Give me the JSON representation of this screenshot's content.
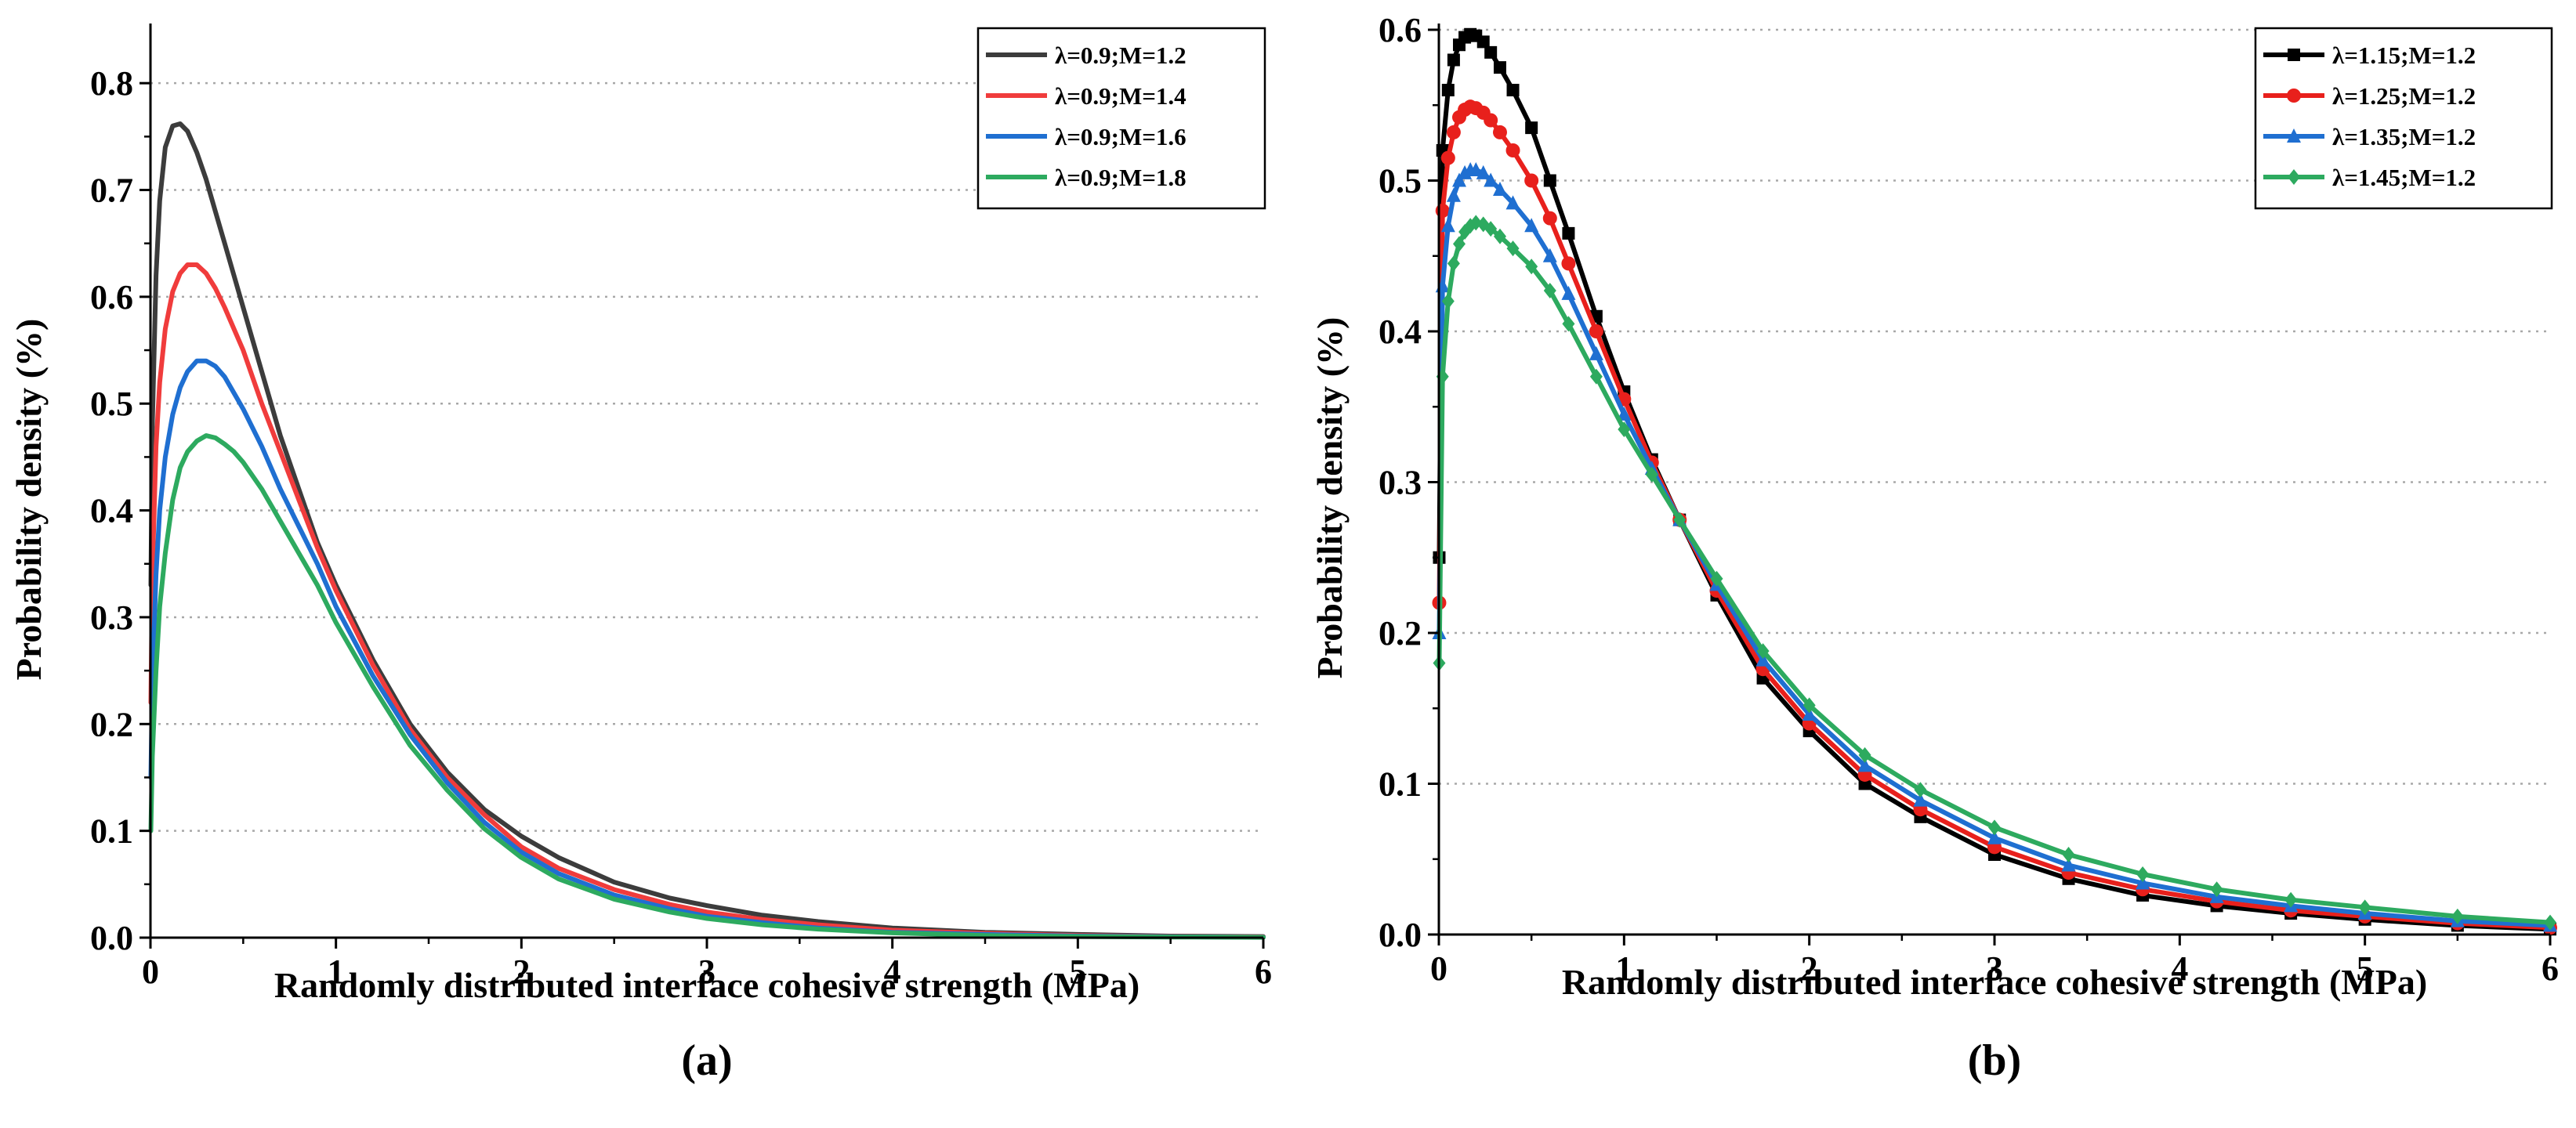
{
  "chart_data": [
    {
      "type": "line",
      "panel_label": "(a)",
      "title": "",
      "xlabel": "Randomly distributed interface cohesive strength (MPa)",
      "ylabel": "Probability density (%)",
      "xlim": [
        0,
        6
      ],
      "ylim": [
        0,
        0.85
      ],
      "xticks": [
        "0",
        "1",
        "2",
        "3",
        "4",
        "5",
        "6"
      ],
      "yticks": [
        "0.0",
        "0.1",
        "0.2",
        "0.3",
        "0.4",
        "0.5",
        "0.6",
        "0.7",
        "0.8"
      ],
      "grid": "horizontal dotted",
      "legend_position": "top-right",
      "x": [
        0.002,
        0.01,
        0.03,
        0.05,
        0.08,
        0.12,
        0.16,
        0.2,
        0.25,
        0.3,
        0.35,
        0.4,
        0.45,
        0.5,
        0.6,
        0.7,
        0.8,
        0.9,
        1.0,
        1.2,
        1.4,
        1.6,
        1.8,
        2.0,
        2.2,
        2.5,
        2.8,
        3.0,
        3.3,
        3.6,
        4.0,
        4.5,
        5.0,
        5.5,
        6.0
      ],
      "series": [
        {
          "name": "λ=0.9;M=1.2",
          "color": "#3c3c3c",
          "values": [
            0.33,
            0.48,
            0.62,
            0.69,
            0.74,
            0.76,
            0.762,
            0.755,
            0.735,
            0.71,
            0.68,
            0.65,
            0.62,
            0.59,
            0.53,
            0.47,
            0.42,
            0.37,
            0.33,
            0.26,
            0.2,
            0.155,
            0.12,
            0.095,
            0.075,
            0.052,
            0.037,
            0.03,
            0.021,
            0.015,
            0.009,
            0.005,
            0.003,
            0.0015,
            0.001
          ]
        },
        {
          "name": "λ=0.9;M=1.4",
          "color": "#f03c3c",
          "values": [
            0.22,
            0.34,
            0.46,
            0.52,
            0.57,
            0.605,
            0.622,
            0.63,
            0.63,
            0.622,
            0.608,
            0.59,
            0.57,
            0.55,
            0.5,
            0.455,
            0.41,
            0.365,
            0.325,
            0.255,
            0.195,
            0.15,
            0.115,
            0.085,
            0.065,
            0.045,
            0.031,
            0.024,
            0.017,
            0.012,
            0.007,
            0.004,
            0.002,
            0.001,
            0.0005
          ]
        },
        {
          "name": "λ=0.9;M=1.6",
          "color": "#1f6fd1",
          "values": [
            0.15,
            0.24,
            0.34,
            0.4,
            0.45,
            0.49,
            0.515,
            0.53,
            0.54,
            0.54,
            0.535,
            0.525,
            0.51,
            0.495,
            0.46,
            0.42,
            0.385,
            0.35,
            0.31,
            0.245,
            0.19,
            0.145,
            0.108,
            0.08,
            0.06,
            0.04,
            0.027,
            0.02,
            0.014,
            0.009,
            0.005,
            0.003,
            0.0015,
            0.0008,
            0.0004
          ]
        },
        {
          "name": "λ=0.9;M=1.8",
          "color": "#2daa5f",
          "values": [
            0.1,
            0.17,
            0.25,
            0.31,
            0.36,
            0.41,
            0.44,
            0.455,
            0.465,
            0.47,
            0.468,
            0.462,
            0.455,
            0.445,
            0.42,
            0.39,
            0.36,
            0.33,
            0.295,
            0.235,
            0.18,
            0.138,
            0.102,
            0.075,
            0.055,
            0.036,
            0.024,
            0.018,
            0.012,
            0.008,
            0.0045,
            0.002,
            0.001,
            0.0006,
            0.0003
          ]
        }
      ],
      "legend_entries": [
        "λ=0.9;M=1.2",
        "λ=0.9;M=1.4",
        "λ=0.9;M=1.6",
        "λ=0.9;M=1.8"
      ]
    },
    {
      "type": "line",
      "panel_label": "(b)",
      "title": "",
      "xlabel": "Randomly distributed interface cohesive strength (MPa)",
      "ylabel": "Probability density (%)",
      "xlim": [
        0,
        6
      ],
      "ylim": [
        0,
        0.6
      ],
      "xticks": [
        "0",
        "1",
        "2",
        "3",
        "4",
        "5",
        "6"
      ],
      "yticks": [
        "0.0",
        "0.1",
        "0.2",
        "0.3",
        "0.4",
        "0.5",
        "0.6"
      ],
      "grid": "horizontal dotted",
      "legend_position": "top-right",
      "x": [
        0.002,
        0.02,
        0.05,
        0.08,
        0.11,
        0.14,
        0.17,
        0.2,
        0.24,
        0.28,
        0.33,
        0.4,
        0.5,
        0.6,
        0.7,
        0.85,
        1.0,
        1.15,
        1.3,
        1.5,
        1.75,
        2.0,
        2.3,
        2.6,
        3.0,
        3.4,
        3.8,
        4.2,
        4.6,
        5.0,
        5.5,
        6.0
      ],
      "series": [
        {
          "name": "λ=1.15;M=1.2",
          "color": "#000000",
          "marker": "square",
          "values": [
            0.25,
            0.52,
            0.56,
            0.58,
            0.59,
            0.595,
            0.597,
            0.596,
            0.592,
            0.585,
            0.575,
            0.56,
            0.535,
            0.5,
            0.465,
            0.41,
            0.36,
            0.315,
            0.275,
            0.225,
            0.17,
            0.135,
            0.1,
            0.078,
            0.053,
            0.037,
            0.026,
            0.019,
            0.014,
            0.01,
            0.006,
            0.0035
          ]
        },
        {
          "name": "λ=1.25;M=1.2",
          "color": "#e8201c",
          "marker": "circle",
          "values": [
            0.22,
            0.48,
            0.515,
            0.532,
            0.542,
            0.547,
            0.549,
            0.548,
            0.545,
            0.54,
            0.532,
            0.52,
            0.5,
            0.475,
            0.445,
            0.4,
            0.355,
            0.313,
            0.275,
            0.228,
            0.176,
            0.14,
            0.106,
            0.083,
            0.058,
            0.041,
            0.03,
            0.022,
            0.016,
            0.012,
            0.0075,
            0.0045
          ]
        },
        {
          "name": "λ=1.35;M=1.2",
          "color": "#1f6fd1",
          "marker": "triangle",
          "values": [
            0.2,
            0.43,
            0.47,
            0.49,
            0.5,
            0.505,
            0.507,
            0.507,
            0.505,
            0.5,
            0.494,
            0.485,
            0.47,
            0.45,
            0.425,
            0.385,
            0.345,
            0.309,
            0.275,
            0.232,
            0.182,
            0.146,
            0.112,
            0.089,
            0.064,
            0.046,
            0.034,
            0.025,
            0.019,
            0.014,
            0.009,
            0.006
          ]
        },
        {
          "name": "λ=1.45;M=1.2",
          "color": "#2daa5f",
          "marker": "diamond",
          "values": [
            0.18,
            0.37,
            0.42,
            0.445,
            0.458,
            0.466,
            0.47,
            0.472,
            0.471,
            0.468,
            0.463,
            0.455,
            0.443,
            0.427,
            0.405,
            0.37,
            0.335,
            0.305,
            0.275,
            0.236,
            0.188,
            0.152,
            0.119,
            0.096,
            0.071,
            0.053,
            0.04,
            0.03,
            0.023,
            0.018,
            0.012,
            0.008
          ]
        }
      ],
      "legend_entries": [
        "λ=1.15;M=1.2",
        "λ=1.25;M=1.2",
        "λ=1.35;M=1.2",
        "λ=1.45;M=1.2"
      ]
    }
  ]
}
